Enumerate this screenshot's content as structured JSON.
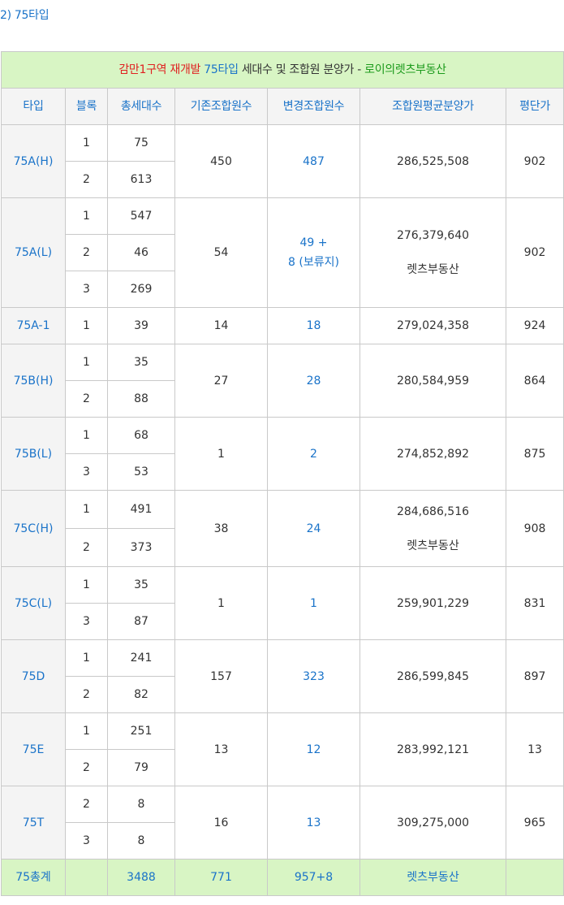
{
  "heading": "2) 75타입",
  "table_title": {
    "part1": "감만1구역 재개발 ",
    "part2": "75타입 ",
    "part3": "세대수 및 조합원 분양가 - ",
    "part4": "로이의렛츠부동산"
  },
  "columns": [
    "타입",
    "블록",
    "총세대수",
    "기존조합원수",
    "변경조합원수",
    "조합원평균분양가",
    "평단가"
  ],
  "rows": [
    {
      "type": "75A(H)",
      "blocks": [
        {
          "block": "1",
          "units": "75"
        },
        {
          "block": "2",
          "units": "613"
        }
      ],
      "existing": "450",
      "changed": "487",
      "price": "286,525,508",
      "price_note": "",
      "per_pyeong": "902"
    },
    {
      "type": "75A(L)",
      "blocks": [
        {
          "block": "1",
          "units": "547"
        },
        {
          "block": "2",
          "units": "46"
        },
        {
          "block": "3",
          "units": "269"
        }
      ],
      "existing": "54",
      "changed_line1": "49 +",
      "changed_line2": "8 (보류지)",
      "price": "276,379,640",
      "price_note": "렛츠부동산",
      "per_pyeong": "902"
    },
    {
      "type": "75A-1",
      "blocks": [
        {
          "block": "1",
          "units": "39"
        }
      ],
      "existing": "14",
      "changed": "18",
      "price": "279,024,358",
      "price_note": "",
      "per_pyeong": "924"
    },
    {
      "type": "75B(H)",
      "blocks": [
        {
          "block": "1",
          "units": "35"
        },
        {
          "block": "2",
          "units": "88"
        }
      ],
      "existing": "27",
      "changed": "28",
      "price": "280,584,959",
      "price_note": "",
      "per_pyeong": "864"
    },
    {
      "type": "75B(L)",
      "blocks": [
        {
          "block": "1",
          "units": "68"
        },
        {
          "block": "3",
          "units": "53"
        }
      ],
      "existing": "1",
      "changed": "2",
      "price": "274,852,892",
      "price_note": "",
      "per_pyeong": "875"
    },
    {
      "type": "75C(H)",
      "blocks": [
        {
          "block": "1",
          "units": "491"
        },
        {
          "block": "2",
          "units": "373"
        }
      ],
      "existing": "38",
      "changed": "24",
      "price": "284,686,516",
      "price_note": "렛츠부동산",
      "per_pyeong": "908"
    },
    {
      "type": "75C(L)",
      "blocks": [
        {
          "block": "1",
          "units": "35"
        },
        {
          "block": "3",
          "units": "87"
        }
      ],
      "existing": "1",
      "changed": "1",
      "price": "259,901,229",
      "price_note": "",
      "per_pyeong": "831"
    },
    {
      "type": "75D",
      "blocks": [
        {
          "block": "1",
          "units": "241"
        },
        {
          "block": "2",
          "units": "82"
        }
      ],
      "existing": "157",
      "changed": "323",
      "price": "286,599,845",
      "price_note": "",
      "per_pyeong": "897"
    },
    {
      "type": "75E",
      "blocks": [
        {
          "block": "1",
          "units": "251"
        },
        {
          "block": "2",
          "units": "79"
        }
      ],
      "existing": "13",
      "changed": "12",
      "price": "283,992,121",
      "price_note": "",
      "per_pyeong": "13"
    },
    {
      "type": "75T",
      "blocks": [
        {
          "block": "2",
          "units": "8"
        },
        {
          "block": "3",
          "units": "8"
        }
      ],
      "existing": "16",
      "changed": "13",
      "price": "309,275,000",
      "price_note": "",
      "per_pyeong": "965"
    }
  ],
  "total": {
    "label": "75총계",
    "block": "",
    "units": "3488",
    "existing": "771",
    "changed": "957+8",
    "price": "렛츠부동산",
    "per_pyeong": ""
  }
}
